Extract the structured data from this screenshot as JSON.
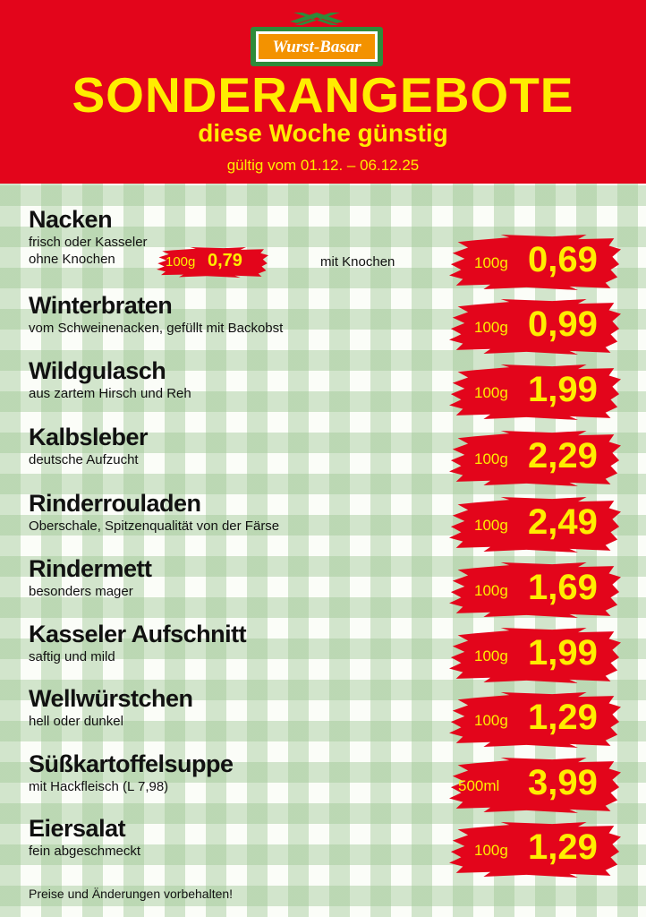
{
  "header": {
    "logo": "Wurst-Basar",
    "title": "SONDERANGEBOTE",
    "subtitle": "diese Woche günstig",
    "validity": "gültig vom 01.12. – 06.12.25"
  },
  "items": [
    {
      "name": "Nacken",
      "description": [
        "frisch oder Kasseler",
        "ohne Knochen"
      ],
      "alt_offer": {
        "unit": "100g",
        "price": "0,79"
      },
      "variant_label": "mit Knochen",
      "unit": "100g",
      "price": "0,69"
    },
    {
      "name": "Winterbraten",
      "description": [
        "vom Schweinenacken, gefüllt mit Backobst"
      ],
      "unit": "100g",
      "price": "0,99"
    },
    {
      "name": "Wildgulasch",
      "description": [
        "aus zartem Hirsch und Reh"
      ],
      "unit": "100g",
      "price": "1,99"
    },
    {
      "name": "Kalbsleber",
      "description": [
        "deutsche Aufzucht"
      ],
      "unit": "100g",
      "price": "2,29"
    },
    {
      "name": "Rinderrouladen",
      "description": [
        "Oberschale, Spitzenqualität von der Färse"
      ],
      "unit": "100g",
      "price": "2,49"
    },
    {
      "name": "Rindermett",
      "description": [
        "besonders mager"
      ],
      "unit": "100g",
      "price": "1,69"
    },
    {
      "name": "Kasseler Aufschnitt",
      "description": [
        "saftig und mild"
      ],
      "unit": "100g",
      "price": "1,99"
    },
    {
      "name": "Wellwürstchen",
      "description": [
        "hell oder dunkel"
      ],
      "unit": "100g",
      "price": "1,29"
    },
    {
      "name": "Süßkartoffelsuppe",
      "description": [
        "mit Hackfleisch (L 7,98)"
      ],
      "unit": "500ml",
      "price": "3,99"
    },
    {
      "name": "Eiersalat",
      "description": [
        "fein abgeschmeckt"
      ],
      "unit": "100g",
      "price": "1,29"
    }
  ],
  "footer": {
    "note": "Preise und Änderungen vorbehalten!"
  }
}
